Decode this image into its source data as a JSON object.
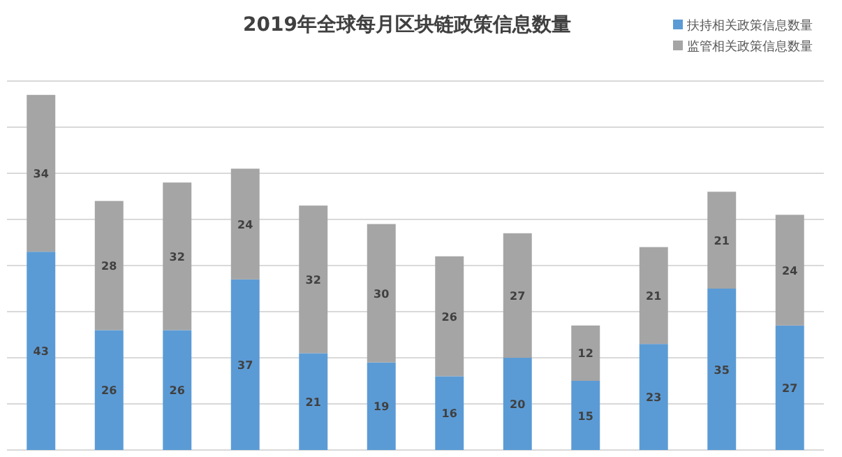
{
  "chart_data": {
    "type": "bar",
    "title": "2019年全球每月区块链政策信息数量",
    "stacked": true,
    "data_labels": true,
    "grid": "y",
    "legend": "top right",
    "tick_labels": false,
    "categories": [
      null,
      null,
      null,
      null,
      null,
      null,
      null,
      null,
      null,
      null,
      null,
      null
    ],
    "ylim": [
      0,
      80
    ],
    "yticks": [
      {
        "value": 0,
        "label": null
      },
      {
        "value": 10,
        "label": null
      },
      {
        "value": 20,
        "label": null
      },
      {
        "value": 30,
        "label": null
      },
      {
        "value": 40,
        "label": null
      },
      {
        "value": 50,
        "label": null
      },
      {
        "value": 60,
        "label": null
      },
      {
        "value": 70,
        "label": null
      },
      {
        "value": 80,
        "label": null
      }
    ],
    "series": [
      {
        "name": "扶持相关政策信息数量",
        "color": "#5b9bd5",
        "values": [
          43,
          26,
          26,
          37,
          21,
          19,
          16,
          20,
          15,
          23,
          35,
          27
        ]
      },
      {
        "name": "监管相关政策信息数量",
        "color": "#a5a5a5",
        "values": [
          34,
          28,
          32,
          24,
          32,
          30,
          26,
          27,
          12,
          21,
          21,
          24
        ]
      }
    ]
  }
}
